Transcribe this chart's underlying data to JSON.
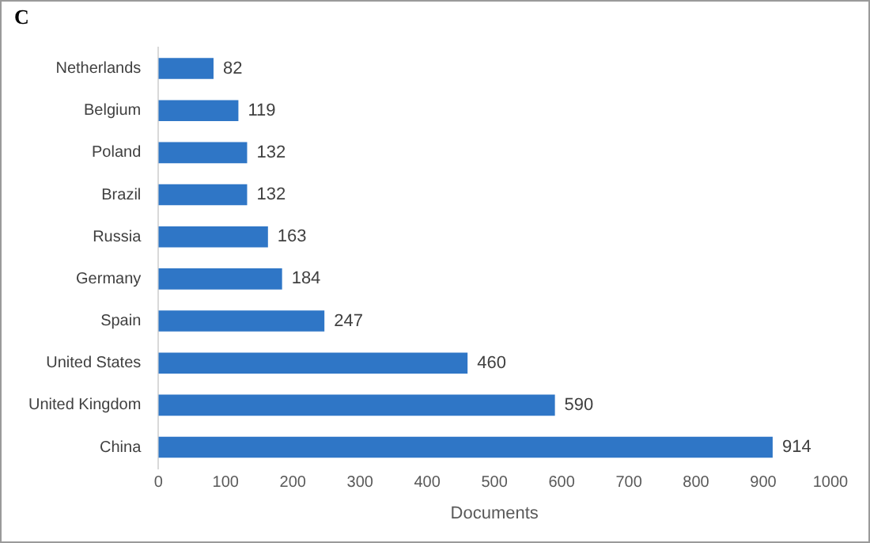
{
  "chart_data": {
    "type": "bar",
    "orientation": "horizontal",
    "title": "C",
    "xlabel": "Documents",
    "categories": [
      "Netherlands",
      "Belgium",
      "Poland",
      "Brazil",
      "Russia",
      "Germany",
      "Spain",
      "United States",
      "United Kingdom",
      "China"
    ],
    "values": [
      82,
      119,
      132,
      132,
      163,
      184,
      247,
      460,
      590,
      914
    ],
    "color": "#2f76c6",
    "xlim": [
      0,
      1000
    ],
    "xticks": [
      0,
      100,
      200,
      300,
      400,
      500,
      600,
      700,
      800,
      900,
      1000
    ],
    "grid": false,
    "legend": false,
    "data_labels": true
  }
}
